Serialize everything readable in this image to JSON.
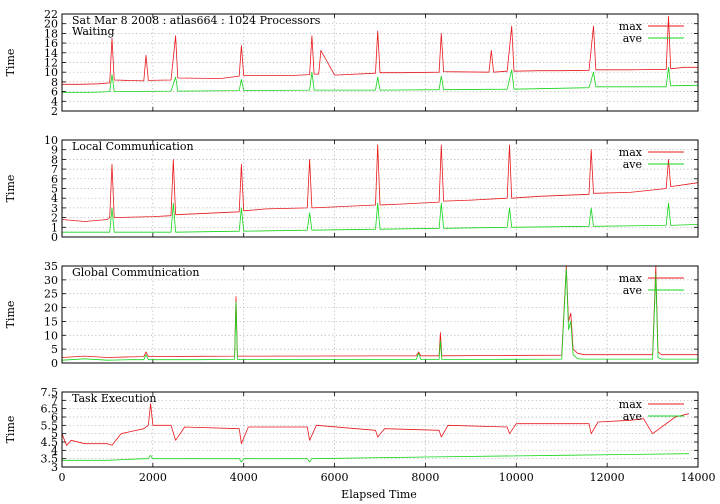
{
  "figure": {
    "xlabel": "Elapsed Time",
    "xlim": [
      0,
      14000
    ],
    "xticks": [
      0,
      2000,
      4000,
      6000,
      8000,
      10000,
      12000,
      14000
    ]
  },
  "colors": {
    "max": "#e8191d",
    "ave": "#17d51c",
    "grid": "#a8a8a8"
  },
  "chart_data": [
    {
      "type": "line",
      "title": "Sat Mar 8 2008 : atlas664 : 1024 Processors",
      "subtitle": "Waiting",
      "ylabel": "Time",
      "xlabel": "",
      "xlim": [
        0,
        14000
      ],
      "ylim": [
        2,
        22
      ],
      "yticks": [
        2,
        4,
        6,
        8,
        10,
        12,
        14,
        16,
        18,
        20,
        22
      ],
      "grid": true,
      "legend": "top-right",
      "series": [
        {
          "name": "max",
          "x": [
            0,
            400,
            800,
            1050,
            1100,
            1150,
            1800,
            1850,
            1900,
            2400,
            2500,
            2550,
            3500,
            3900,
            3950,
            4000,
            5000,
            5450,
            5500,
            5550,
            5650,
            5700,
            6000,
            6900,
            6950,
            7000,
            7500,
            8300,
            8350,
            8400,
            9400,
            9450,
            9500,
            9800,
            9900,
            9950,
            10500,
            11000,
            11600,
            11700,
            11750,
            12500,
            13300,
            13350,
            13400,
            13700,
            14000
          ],
          "values": [
            7.5,
            7.5,
            7.6,
            7.8,
            17,
            8.4,
            8.2,
            13.5,
            8.3,
            8.4,
            17.5,
            8.8,
            8.7,
            9.2,
            15.5,
            9.3,
            9.3,
            9.5,
            17.5,
            9.6,
            9.6,
            14.5,
            9.4,
            9.8,
            18.5,
            9.9,
            9.9,
            10.0,
            18.0,
            10.1,
            10.0,
            14.5,
            10.0,
            10.2,
            19.5,
            10.2,
            10.3,
            10.3,
            10.4,
            19.5,
            10.5,
            10.5,
            10.6,
            21.5,
            10.7,
            11.0,
            11.0
          ]
        },
        {
          "name": "ave",
          "x": [
            0,
            400,
            800,
            1050,
            1100,
            1150,
            2400,
            2500,
            2550,
            3900,
            3950,
            4000,
            5450,
            5500,
            5550,
            6900,
            6950,
            7000,
            8300,
            8350,
            8400,
            9800,
            9900,
            9950,
            11600,
            11700,
            11750,
            13300,
            13350,
            13400,
            14000
          ],
          "values": [
            5.8,
            5.8,
            5.9,
            6.0,
            9.5,
            6.0,
            6.1,
            9.0,
            6.1,
            6.2,
            8.5,
            6.2,
            6.3,
            10.0,
            6.3,
            6.3,
            9.0,
            6.3,
            6.4,
            9.2,
            6.4,
            6.5,
            10.5,
            6.5,
            6.8,
            10.0,
            7.0,
            7.0,
            11.0,
            7.2,
            7.3
          ]
        }
      ]
    },
    {
      "type": "line",
      "title": "Local Communication",
      "ylabel": "Time",
      "xlabel": "",
      "xlim": [
        0,
        14000
      ],
      "ylim": [
        0,
        10
      ],
      "yticks": [
        0,
        1,
        2,
        3,
        4,
        5,
        6,
        7,
        8,
        9,
        10
      ],
      "grid": true,
      "legend": "top-right",
      "series": [
        {
          "name": "max",
          "x": [
            0,
            500,
            1000,
            1050,
            1100,
            1150,
            2000,
            2400,
            2450,
            2500,
            3000,
            3900,
            3950,
            4000,
            4500,
            5400,
            5450,
            5500,
            6000,
            6900,
            6950,
            7000,
            7500,
            8300,
            8350,
            8400,
            9000,
            9800,
            9850,
            9900,
            10500,
            11600,
            11650,
            11700,
            12500,
            13300,
            13350,
            13400,
            14000
          ],
          "values": [
            1.8,
            1.6,
            1.8,
            2.0,
            7.5,
            2.0,
            2.1,
            2.2,
            8.0,
            2.3,
            2.4,
            2.6,
            7.5,
            2.7,
            2.9,
            3.0,
            8.0,
            3.0,
            3.1,
            3.3,
            9.5,
            3.3,
            3.4,
            3.6,
            9.5,
            3.7,
            3.8,
            4.0,
            9.5,
            4.0,
            4.2,
            4.4,
            9.0,
            4.5,
            4.6,
            5.0,
            8.0,
            5.2,
            5.6
          ]
        },
        {
          "name": "ave",
          "x": [
            0,
            1050,
            1100,
            1150,
            2400,
            2450,
            2500,
            3900,
            3950,
            4000,
            5400,
            5450,
            5500,
            6900,
            6950,
            7000,
            8300,
            8350,
            8400,
            9800,
            9850,
            9900,
            11600,
            11650,
            11700,
            13300,
            13350,
            13400,
            14000
          ],
          "values": [
            0.5,
            0.5,
            3.0,
            0.5,
            0.5,
            3.5,
            0.5,
            0.6,
            3.0,
            0.6,
            0.7,
            2.5,
            0.7,
            0.8,
            3.5,
            0.8,
            0.9,
            3.5,
            0.9,
            1.0,
            3.0,
            1.0,
            1.1,
            3.0,
            1.1,
            1.2,
            3.5,
            1.2,
            1.3
          ]
        }
      ]
    },
    {
      "type": "line",
      "title": "Global Communication",
      "ylabel": "Time",
      "xlabel": "",
      "xlim": [
        0,
        14000
      ],
      "ylim": [
        0,
        35
      ],
      "yticks": [
        0,
        5,
        10,
        15,
        20,
        25,
        30,
        35
      ],
      "grid": true,
      "legend": "top-right",
      "series": [
        {
          "name": "max",
          "x": [
            0,
            500,
            1000,
            1500,
            1800,
            1850,
            1900,
            3000,
            3800,
            3830,
            3860,
            4500,
            7800,
            7850,
            7900,
            8300,
            8330,
            8360,
            9500,
            11000,
            11100,
            11150,
            11200,
            11250,
            11350,
            11500,
            12000,
            13000,
            13070,
            13120,
            13200,
            14000
          ],
          "values": [
            2.0,
            2.5,
            2.0,
            2.2,
            2.3,
            4.0,
            2.3,
            2.4,
            2.5,
            24.0,
            2.5,
            2.5,
            2.6,
            4.0,
            2.6,
            2.6,
            11.0,
            2.6,
            2.7,
            2.8,
            35.0,
            15.0,
            18.0,
            5.0,
            3.5,
            3.0,
            3.0,
            3.0,
            35.0,
            4.0,
            3.0,
            3.0
          ]
        },
        {
          "name": "ave",
          "x": [
            0,
            500,
            1000,
            1500,
            1800,
            1850,
            1900,
            3000,
            3800,
            3830,
            3860,
            4500,
            7800,
            7850,
            7900,
            8300,
            8330,
            8360,
            9500,
            11000,
            11100,
            11150,
            11200,
            11250,
            11350,
            11500,
            12000,
            13000,
            13070,
            13120,
            13200,
            14000
          ],
          "values": [
            1.0,
            1.5,
            1.0,
            1.2,
            1.2,
            3.0,
            1.2,
            1.2,
            1.3,
            22.0,
            1.3,
            1.3,
            1.3,
            3.5,
            1.3,
            1.3,
            8.0,
            1.3,
            1.3,
            1.4,
            34.0,
            12.0,
            15.0,
            3.0,
            1.5,
            1.4,
            1.4,
            1.4,
            32.0,
            2.0,
            1.4,
            1.4
          ]
        }
      ]
    },
    {
      "type": "line",
      "title": "Task Execution",
      "ylabel": "Time",
      "xlabel": "",
      "xlim": [
        0,
        14000
      ],
      "ylim": [
        3,
        7.5
      ],
      "yticks": [
        3,
        3.5,
        4,
        4.5,
        5,
        5.5,
        6,
        6.5,
        7,
        7.5
      ],
      "grid": true,
      "legend": "top-right",
      "series": [
        {
          "name": "max",
          "x": [
            0,
            100,
            200,
            500,
            1000,
            1100,
            1300,
            1800,
            1900,
            1950,
            2000,
            2400,
            2500,
            2700,
            3900,
            3950,
            4100,
            5400,
            5450,
            5600,
            6900,
            6950,
            7100,
            8300,
            8350,
            8500,
            9800,
            9850,
            10000,
            11600,
            11650,
            11800,
            12500,
            12800,
            13000,
            13500,
            13800
          ],
          "values": [
            5.0,
            4.3,
            4.6,
            4.4,
            4.4,
            4.3,
            5.0,
            5.3,
            5.5,
            6.8,
            5.5,
            5.5,
            4.6,
            5.4,
            5.3,
            4.4,
            5.4,
            5.4,
            4.6,
            5.5,
            5.2,
            4.8,
            5.3,
            5.2,
            4.8,
            5.5,
            5.4,
            5.0,
            5.6,
            5.6,
            5.0,
            5.7,
            5.8,
            5.9,
            5.0,
            6.0,
            6.2
          ]
        },
        {
          "name": "ave",
          "x": [
            0,
            1000,
            1800,
            1900,
            1950,
            2000,
            3900,
            3950,
            4000,
            5400,
            5450,
            5500,
            8000,
            11000,
            13800
          ],
          "values": [
            3.4,
            3.4,
            3.5,
            3.5,
            3.7,
            3.5,
            3.5,
            3.3,
            3.5,
            3.5,
            3.3,
            3.5,
            3.6,
            3.7,
            3.8
          ]
        }
      ]
    }
  ]
}
